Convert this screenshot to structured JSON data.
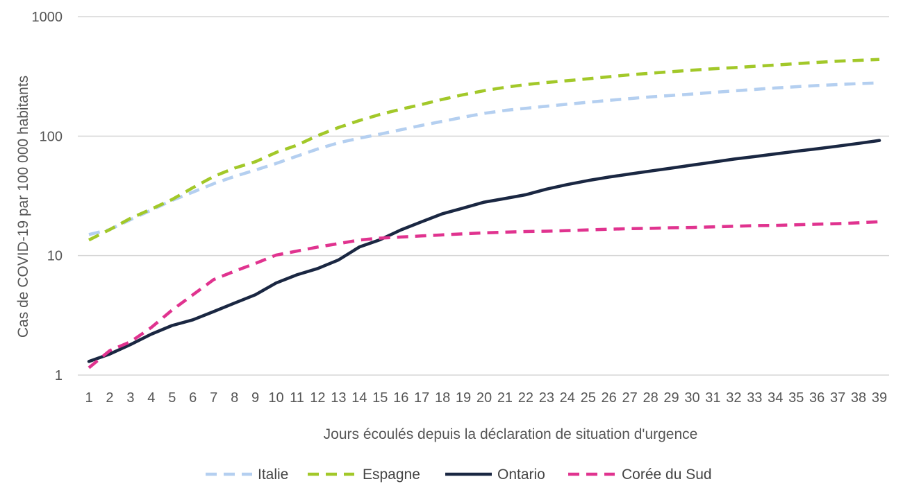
{
  "chart_data": {
    "type": "line",
    "xlabel": "Jours écoulés depuis la déclaration de situation d'urgence",
    "ylabel": "Cas de COVID-19 par 100 000 habitants",
    "yscale": "log",
    "ylim": [
      1,
      1000
    ],
    "yticks": [
      1,
      10,
      100,
      1000
    ],
    "ytick_labels": [
      "1",
      "10",
      "100",
      "1000"
    ],
    "x": [
      1,
      2,
      3,
      4,
      5,
      6,
      7,
      8,
      9,
      10,
      11,
      12,
      13,
      14,
      15,
      16,
      17,
      18,
      19,
      20,
      21,
      22,
      23,
      24,
      25,
      26,
      27,
      28,
      29,
      30,
      31,
      32,
      33,
      34,
      35,
      36,
      37,
      38,
      39
    ],
    "xtick_labels": [
      "1",
      "2",
      "3",
      "4",
      "5",
      "6",
      "7",
      "8",
      "9",
      "10",
      "11",
      "12",
      "13",
      "14",
      "15",
      "16",
      "17",
      "18",
      "19",
      "20",
      "21",
      "22",
      "23",
      "24",
      "25",
      "26",
      "27",
      "28",
      "29",
      "30",
      "31",
      "32",
      "33",
      "34",
      "35",
      "36",
      "37",
      "38",
      "39"
    ],
    "grid": true,
    "legend_position": "bottom",
    "series": [
      {
        "name": "Italie",
        "color": "#b4cff0",
        "dash": "dashed",
        "values": [
          15,
          16.5,
          20,
          24,
          29,
          34,
          40,
          46,
          52,
          59,
          68,
          78,
          88,
          96,
          104,
          113,
          123,
          133,
          144,
          155,
          164,
          171,
          178,
          185,
          192,
          199,
          206,
          213,
          219,
          225,
          232,
          239,
          246,
          253,
          259,
          265,
          270,
          275,
          279
        ]
      },
      {
        "name": "Espagne",
        "color": "#a2c829",
        "dash": "dashed",
        "values": [
          13.5,
          16.5,
          20.5,
          24.5,
          29.5,
          37,
          46,
          54,
          61,
          73,
          84,
          101,
          118,
          135,
          152,
          168,
          184,
          203,
          222,
          240,
          256,
          270,
          281,
          291,
          302,
          314,
          326,
          336,
          346,
          356,
          366,
          374,
          384,
          393,
          404,
          414,
          424,
          431,
          438
        ]
      },
      {
        "name": "Ontario",
        "color": "#1a2742",
        "dash": "solid",
        "values": [
          1.3,
          1.5,
          1.8,
          2.2,
          2.6,
          2.9,
          3.4,
          4.0,
          4.7,
          5.9,
          6.9,
          7.8,
          9.2,
          11.8,
          13.6,
          16.4,
          19.2,
          22.4,
          25.0,
          28.0,
          30.0,
          32.3,
          36.0,
          39.3,
          42.5,
          45.4,
          48.2,
          51.0,
          54.0,
          57.2,
          60.5,
          64.2,
          67.4,
          71.0,
          74.7,
          78.3,
          82.4,
          87.0,
          92.0
        ]
      },
      {
        "name": "Corée du Sud",
        "color": "#e0338f",
        "dash": "dashed",
        "values": [
          1.15,
          1.6,
          1.9,
          2.5,
          3.5,
          4.7,
          6.3,
          7.4,
          8.6,
          10.1,
          10.9,
          11.8,
          12.6,
          13.5,
          14.0,
          14.3,
          14.6,
          14.9,
          15.2,
          15.5,
          15.7,
          15.9,
          16.0,
          16.2,
          16.4,
          16.6,
          16.8,
          16.9,
          17.1,
          17.2,
          17.4,
          17.6,
          17.8,
          17.9,
          18.1,
          18.3,
          18.5,
          18.8,
          19.2
        ]
      }
    ]
  }
}
